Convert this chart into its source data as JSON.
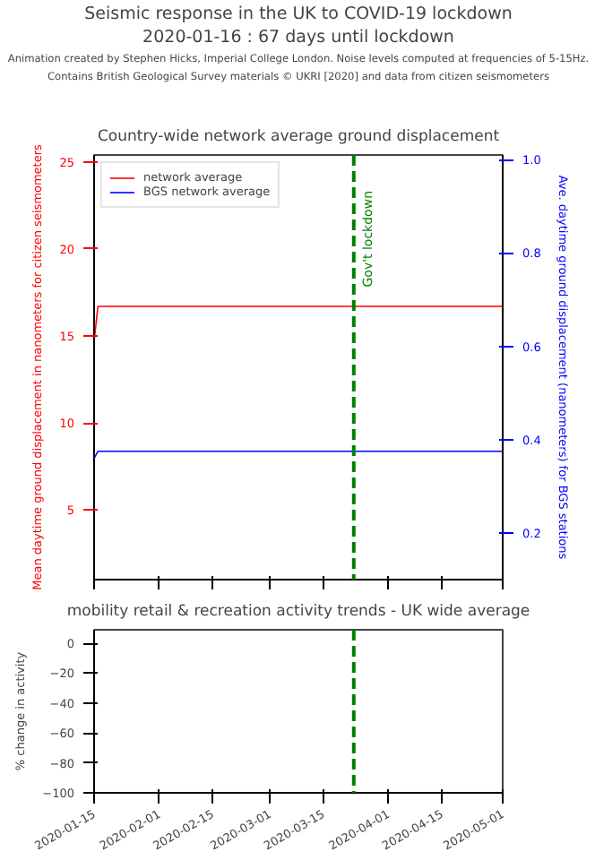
{
  "chart_data": [
    {
      "type": "other",
      "title": "Seismic response in the UK to COVID-19 lockdown",
      "subtitle": "2020-01-16 : 67 days until lockdown",
      "annotations": [
        "Animation created by Stephen Hicks, Imperial College London. Noise levels computed at frequencies of 5-15Hz.",
        "Contains British Geological Survey materials © UKRI [2020] and data from citizen seismometers"
      ]
    },
    {
      "type": "line",
      "title": "Country-wide network average ground displacement",
      "ylabel": "Mean daytime ground displacement in nanometers for citizen seismometers",
      "y2label": "Ave. daytime ground displacement (nanometers) for BGS stations",
      "x": [
        "2020-01-15",
        "2020-01-16",
        "2020-05-01"
      ],
      "series": [
        {
          "name": "network average",
          "color": "#ff0000",
          "values": [
            14.7,
            16.7,
            16.7
          ]
        },
        {
          "name": "BGS network average",
          "color": "#0000ff",
          "axis": "y2",
          "values": [
            0.36,
            0.375,
            0.375
          ]
        }
      ],
      "xlim": [
        "2020-01-15",
        "2020-05-01"
      ],
      "xticks": [
        "2020-01-15",
        "2020-02-01",
        "2020-02-15",
        "2020-03-01",
        "2020-03-15",
        "2020-04-01",
        "2020-04-15",
        "2020-05-01"
      ],
      "ylim": [
        1.0,
        25.4
      ],
      "yticks": [
        5,
        10,
        15,
        20,
        25
      ],
      "y2lim": [
        0.1,
        1.01
      ],
      "y2ticks": [
        0.2,
        0.4,
        0.6,
        0.8,
        {
          "value": 1.0,
          "label": "1.0"
        }
      ],
      "ref_lines": [
        {
          "axis": "x",
          "value": "2020-03-23",
          "label": "Gov't lockdown",
          "color": "#008000",
          "line_style": "dashed"
        }
      ],
      "legend": "top left",
      "grid": false,
      "tick_labels": "y"
    },
    {
      "type": "line",
      "title": "mobility retail & recreation activity trends - UK wide average",
      "ylabel": "% change in activity",
      "xlim": [
        "2020-01-15",
        "2020-05-01"
      ],
      "xticks": [
        "2020-01-15",
        "2020-02-01",
        "2020-02-15",
        "2020-03-01",
        "2020-03-15",
        "2020-04-01",
        "2020-04-15",
        "2020-05-01"
      ],
      "ylim": [
        -100,
        9
      ],
      "yticks": [
        {
          "value": 0,
          "label": "0"
        },
        {
          "value": -20,
          "label": "−20"
        },
        {
          "value": -40,
          "label": "−40"
        },
        {
          "value": -60,
          "label": "−60"
        },
        {
          "value": -80,
          "label": "−80"
        },
        {
          "value": -100,
          "label": "−100"
        }
      ],
      "ref_lines": [
        {
          "axis": "x",
          "value": "2020-03-23",
          "label": null,
          "color": "#008000",
          "line_style": "dashed"
        }
      ],
      "grid": false
    }
  ]
}
